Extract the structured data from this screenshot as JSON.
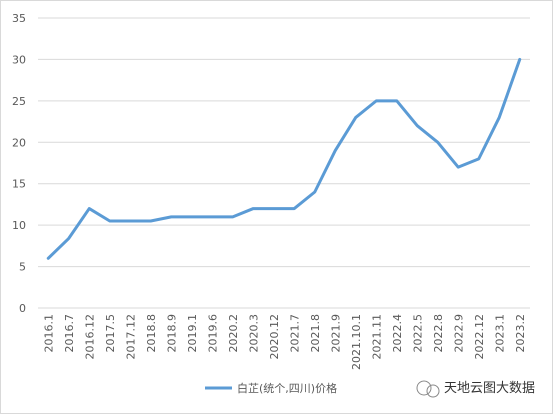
{
  "chart_data": {
    "type": "line",
    "categories": [
      "2016.1",
      "2016.7",
      "2016.12",
      "2017.5",
      "2017.12",
      "2018.8",
      "2018.9",
      "2019.1",
      "2019.6",
      "2020.2",
      "2020.3",
      "2020.12",
      "2021.7",
      "2021.8",
      "2021.9",
      "2021.10.1",
      "2021.11",
      "2022.4",
      "2022.5",
      "2022.8",
      "2022.9",
      "2022.12",
      "2023.1",
      "2023.2"
    ],
    "series": [
      {
        "name": "白芷(统个,四川)价格",
        "color": "#5b9bd5",
        "values": [
          6,
          8.4,
          12,
          10.5,
          10.5,
          10.5,
          11,
          11,
          11,
          11,
          12,
          12,
          12,
          14,
          19,
          23,
          25,
          25,
          22,
          20,
          17,
          18,
          23,
          30
        ]
      }
    ],
    "ylim": [
      0,
      35
    ],
    "yticks": [
      0,
      5,
      10,
      15,
      20,
      25,
      30,
      35
    ],
    "grid": true,
    "legend": "bottom",
    "watermark": "天地云图大数据"
  }
}
